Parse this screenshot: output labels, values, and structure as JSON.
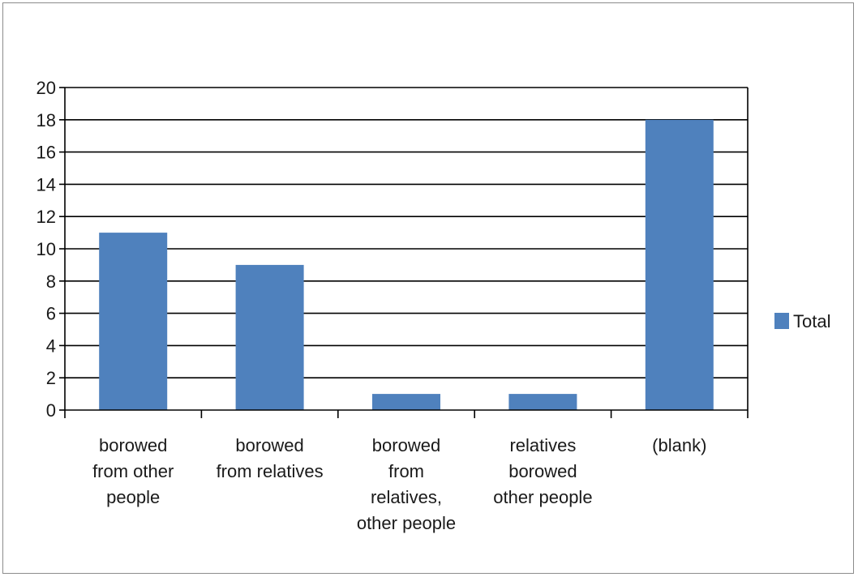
{
  "chart_data": {
    "type": "bar",
    "categories": [
      [
        "borowed",
        "from other",
        "people"
      ],
      [
        "borowed",
        "from relatives"
      ],
      [
        "borowed",
        "from",
        "relatives,",
        "other people"
      ],
      [
        "relatives",
        "borowed",
        "other people"
      ],
      [
        "(blank)"
      ]
    ],
    "series": [
      {
        "name": "Total",
        "values": [
          11,
          9,
          1,
          1,
          18
        ],
        "color": "#4f81bd"
      }
    ],
    "ylim": [
      0,
      20
    ],
    "yticks": [
      0,
      2,
      4,
      6,
      8,
      10,
      12,
      14,
      16,
      18,
      20
    ],
    "grid": true,
    "legend_position": "right",
    "title": "",
    "xlabel": "",
    "ylabel": ""
  }
}
